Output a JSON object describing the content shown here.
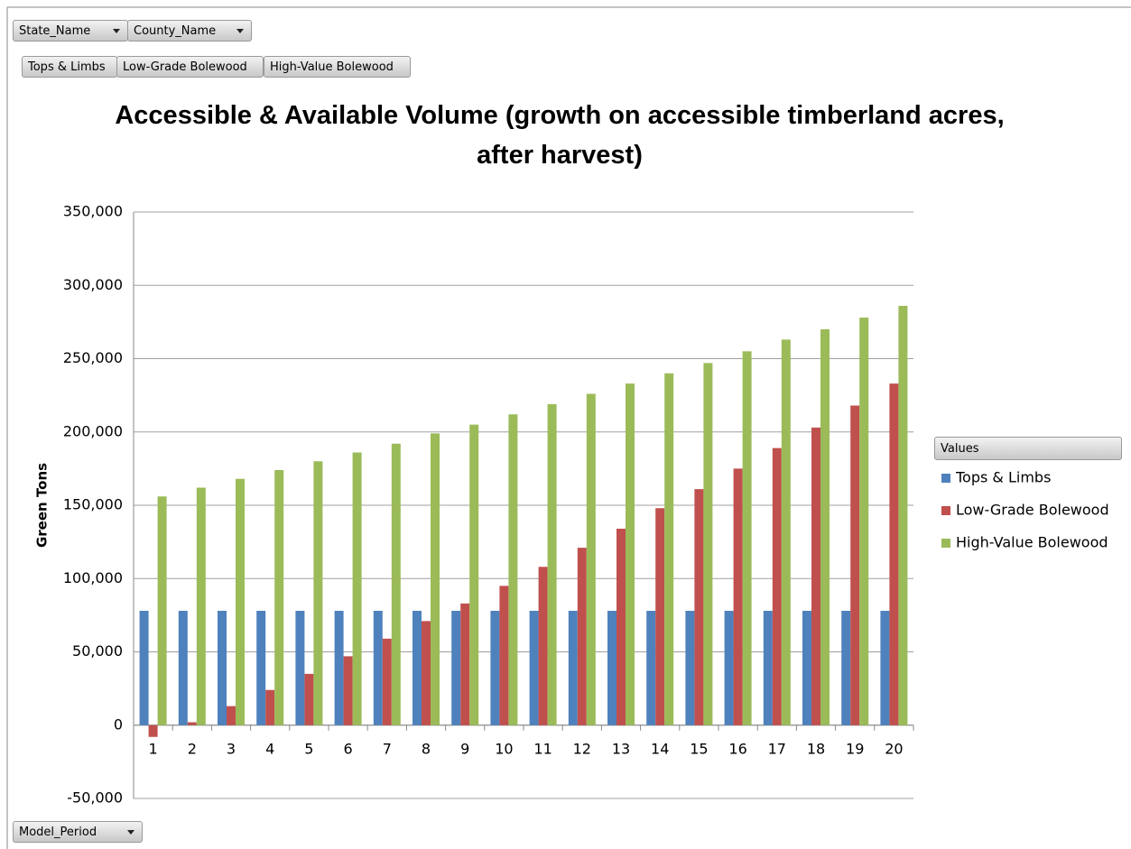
{
  "pivot": {
    "filters": [
      "State_Name",
      "County_Name"
    ],
    "axis_field": "Model_Period",
    "legend_title": "Values"
  },
  "chart_data": {
    "type": "bar",
    "title": "Accessible & Available Volume (growth on accessible timberland acres, after harvest)",
    "y_label": "Green Tons",
    "categories": [
      "1",
      "2",
      "3",
      "4",
      "5",
      "6",
      "7",
      "8",
      "9",
      "10",
      "11",
      "12",
      "13",
      "14",
      "15",
      "16",
      "17",
      "18",
      "19",
      "20"
    ],
    "series": [
      {
        "name": "Tops & Limbs",
        "color": "#4f81bd",
        "values": [
          78000,
          78000,
          78000,
          78000,
          78000,
          78000,
          78000,
          78000,
          78000,
          78000,
          78000,
          78000,
          78000,
          78000,
          78000,
          78000,
          78000,
          78000,
          78000,
          78000
        ]
      },
      {
        "name": "Low-Grade Bolewood",
        "color": "#c0504d",
        "values": [
          -8000,
          2000,
          13000,
          24000,
          35000,
          47000,
          59000,
          71000,
          83000,
          95000,
          108000,
          121000,
          134000,
          148000,
          161000,
          175000,
          189000,
          203000,
          218000,
          233000
        ]
      },
      {
        "name": "High-Value Bolewood",
        "color": "#9bbb59",
        "values": [
          156000,
          162000,
          168000,
          174000,
          180000,
          186000,
          192000,
          199000,
          205000,
          212000,
          219000,
          226000,
          233000,
          240000,
          247000,
          255000,
          263000,
          270000,
          278000,
          286000
        ]
      }
    ],
    "ylim": [
      -50000,
      350000
    ],
    "yticks": [
      {
        "value": -50000,
        "label": "-50,000"
      },
      0,
      {
        "value": 50000,
        "label": "50,000"
      },
      {
        "value": 100000,
        "label": "100,000"
      },
      {
        "value": 150000,
        "label": "150,000"
      },
      {
        "value": 200000,
        "label": "200,000"
      },
      {
        "value": 250000,
        "label": "250,000"
      },
      {
        "value": 300000,
        "label": "300,000"
      },
      {
        "value": 350000,
        "label": "350,000"
      }
    ],
    "grid": true,
    "legend": "right"
  }
}
